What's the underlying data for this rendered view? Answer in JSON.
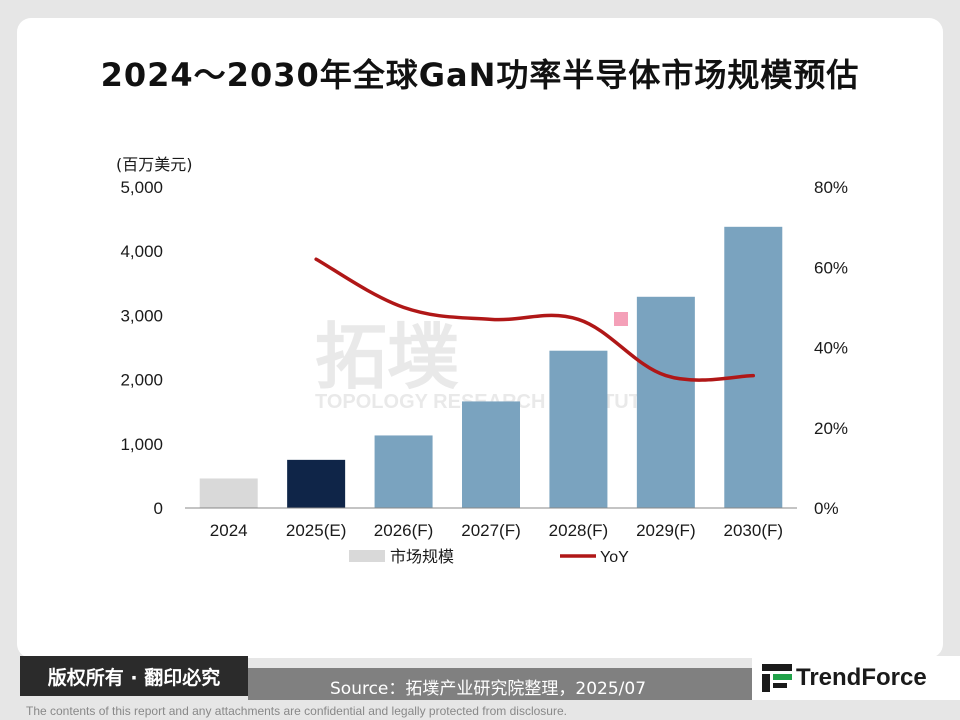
{
  "chart_data": {
    "type": "bar",
    "title": "2024～2030年全球GaN功率半导体市场规模预估",
    "categories": [
      "2024",
      "2025(E)",
      "2026(F)",
      "2027(F)",
      "2028(F)",
      "2029(F)",
      "2030(F)"
    ],
    "series": [
      {
        "name": "市场规模",
        "type": "bar",
        "axis": "left",
        "values": [
          460,
          750,
          1130,
          1660,
          2450,
          3290,
          4380
        ]
      },
      {
        "name": "YoY",
        "type": "line",
        "axis": "right",
        "values": [
          null,
          62,
          50,
          47,
          47,
          33,
          33
        ]
      }
    ],
    "bar_colors": [
      "#d9d9d9",
      "#0f2548",
      "#7aa3bf",
      "#7aa3bf",
      "#7aa3bf",
      "#7aa3bf",
      "#7aa3bf"
    ],
    "line_color": "#b01717",
    "ylabel": "(百万美元)",
    "ylim": [
      0,
      5000
    ],
    "yticks": [
      "0",
      "1,000",
      "2,000",
      "3,000",
      "4,000",
      "5,000"
    ],
    "y2lim": [
      0,
      80
    ],
    "y2ticks": [
      "0%",
      "20%",
      "40%",
      "60%",
      "80%"
    ],
    "legend": "bottom",
    "grid": false
  },
  "watermark": {
    "logo_text": "拓墣",
    "sub_text": "TOPOLOGY RESEARCH INSTITUTE"
  },
  "footer": {
    "rights": "版权所有 · 翻印必究",
    "source": "Source：拓墣产业研究院整理，2025/07",
    "brand": "TrendForce",
    "disclaimer": "The contents of this report and any attachments are confidential and legally protected from disclosure."
  }
}
